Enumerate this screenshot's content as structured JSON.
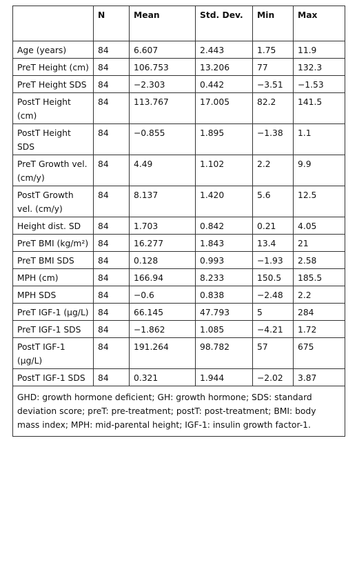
{
  "table": {
    "columns": [
      "N",
      "Mean",
      "Std. Dev.",
      "Min",
      "Max"
    ],
    "rows": [
      {
        "label": "Age (years)",
        "cells": [
          "84",
          "6.607",
          "2.443",
          "1.75",
          "11.9"
        ]
      },
      {
        "label": "PreT Height (cm)",
        "cells": [
          "84",
          "106.753",
          "13.206",
          "77",
          "132.3"
        ]
      },
      {
        "label": "PreT Height SDS",
        "cells": [
          "84",
          "−2.303",
          "0.442",
          "−3.51",
          "−1.53"
        ]
      },
      {
        "label": "PostT Height (cm)",
        "cells": [
          "84",
          "113.767",
          "17.005",
          "82.2",
          "141.5"
        ]
      },
      {
        "label": "PostT Height SDS",
        "cells": [
          "84",
          "−0.855",
          "1.895",
          "−1.38",
          "1.1"
        ]
      },
      {
        "label": "PreT Growth vel. (cm/y)",
        "cells": [
          "84",
          "4.49",
          "1.102",
          "2.2",
          "9.9"
        ]
      },
      {
        "label": "PostT Growth vel. (cm/y)",
        "cells": [
          "84",
          "8.137",
          "1.420",
          "5.6",
          "12.5"
        ]
      },
      {
        "label": "Height dist. SD",
        "cells": [
          "84",
          "1.703",
          "0.842",
          "0.21",
          "4.05"
        ]
      },
      {
        "label": "PreT BMI (kg/m²)",
        "cells": [
          "84",
          "16.277",
          "1.843",
          "13.4",
          "21"
        ]
      },
      {
        "label": "PreT BMI SDS",
        "cells": [
          "84",
          "0.128",
          "0.993",
          "−1.93",
          "2.58"
        ]
      },
      {
        "label": "MPH (cm)",
        "cells": [
          "84",
          "166.94",
          "8.233",
          "150.5",
          "185.5"
        ]
      },
      {
        "label": "MPH SDS",
        "cells": [
          "84",
          "−0.6",
          "0.838",
          "−2.48",
          "2.2"
        ]
      },
      {
        "label": "PreT IGF-1 (µg/L)",
        "cells": [
          "84",
          "66.145",
          "47.793",
          "5",
          "284"
        ]
      },
      {
        "label": "PreT IGF-1 SDS",
        "cells": [
          "84",
          "−1.862",
          "1.085",
          "−4.21",
          "1.72"
        ]
      },
      {
        "label": "PostT IGF-1 (µg/L)",
        "cells": [
          "84",
          "191.264",
          "98.782",
          "57",
          "675"
        ]
      },
      {
        "label": "PostT IGF-1 SDS",
        "cells": [
          "84",
          "0.321",
          "1.944",
          "−2.02",
          "3.87"
        ]
      }
    ],
    "footnote": "GHD: growth hormone deficient; GH: growth hormone; SDS: standard deviation score; preT: pre-treatment; postT: post-treatment; BMI: body mass index; MPH: mid-parental height; IGF-1: insulin growth factor-1."
  }
}
